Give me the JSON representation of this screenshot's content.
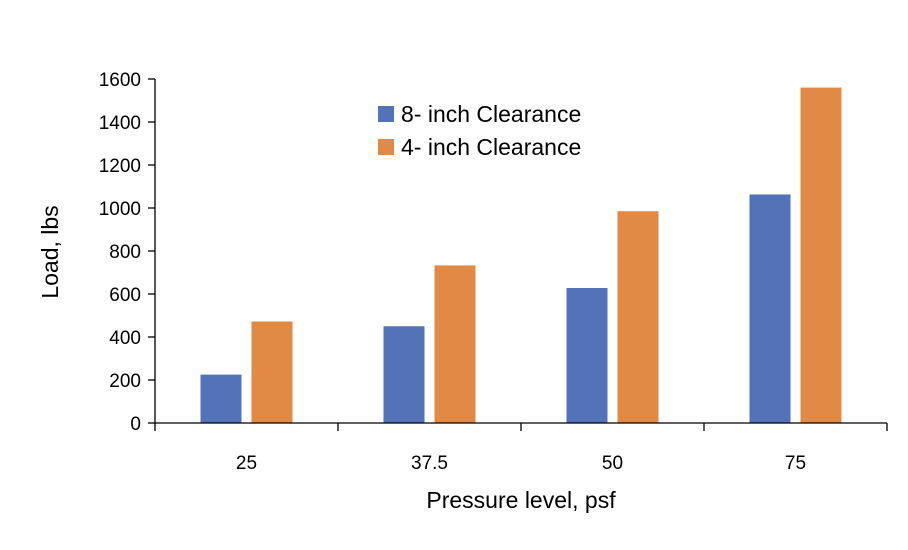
{
  "chart_data": {
    "type": "bar",
    "title": "",
    "xlabel": "Pressure level, psf",
    "ylabel": "Load,  lbs",
    "categories": [
      "25",
      "37.5",
      "50",
      "75"
    ],
    "ylim": [
      0,
      1600
    ],
    "yticks": [
      0,
      200,
      400,
      600,
      800,
      1000,
      1200,
      1400,
      1600
    ],
    "grid": false,
    "legend_position": "top-center",
    "series": [
      {
        "name": "8- inch Clearance",
        "color": "#5472b8",
        "values": [
          225,
          450,
          628,
          1063
        ]
      },
      {
        "name": "4- inch Clearance",
        "color": "#e08a46",
        "values": [
          472,
          733,
          985,
          1560
        ]
      }
    ]
  }
}
